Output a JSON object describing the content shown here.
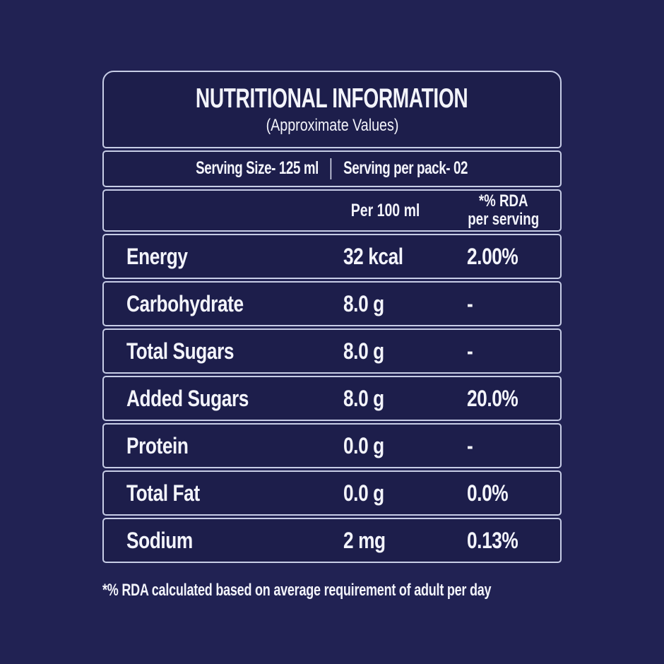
{
  "header": {
    "title": "NUTRITIONAL INFORMATION",
    "subtitle": "(Approximate Values)"
  },
  "serving": {
    "size_label": "Serving Size- 125 ml",
    "per_pack_label": "Serving per pack- 02"
  },
  "columns": {
    "nutrient": "",
    "per_100ml": "Per 100 ml",
    "rda_line1": "*% RDA",
    "rda_line2": "per serving"
  },
  "table": {
    "rows": [
      {
        "label": "Energy",
        "per_100ml": "32 kcal",
        "rda": "2.00%"
      },
      {
        "label": "Carbohydrate",
        "per_100ml": "8.0 g",
        "rda": "-"
      },
      {
        "label": "Total Sugars",
        "per_100ml": "8.0 g",
        "rda": "-"
      },
      {
        "label": "Added Sugars",
        "per_100ml": "8.0 g",
        "rda": "20.0%"
      },
      {
        "label": "Protein",
        "per_100ml": "0.0 g",
        "rda": "-"
      },
      {
        "label": "Total Fat",
        "per_100ml": "0.0 g",
        "rda": "0.0%"
      },
      {
        "label": "Sodium",
        "per_100ml": "2 mg",
        "rda": "0.13%"
      }
    ]
  },
  "footnote": "*% RDA calculated based on average requirement of adult per day",
  "colors": {
    "background": "#212253",
    "panel_fill": "#1d1e4b",
    "border": "#c7cde6",
    "text": "#f3f4fb"
  }
}
